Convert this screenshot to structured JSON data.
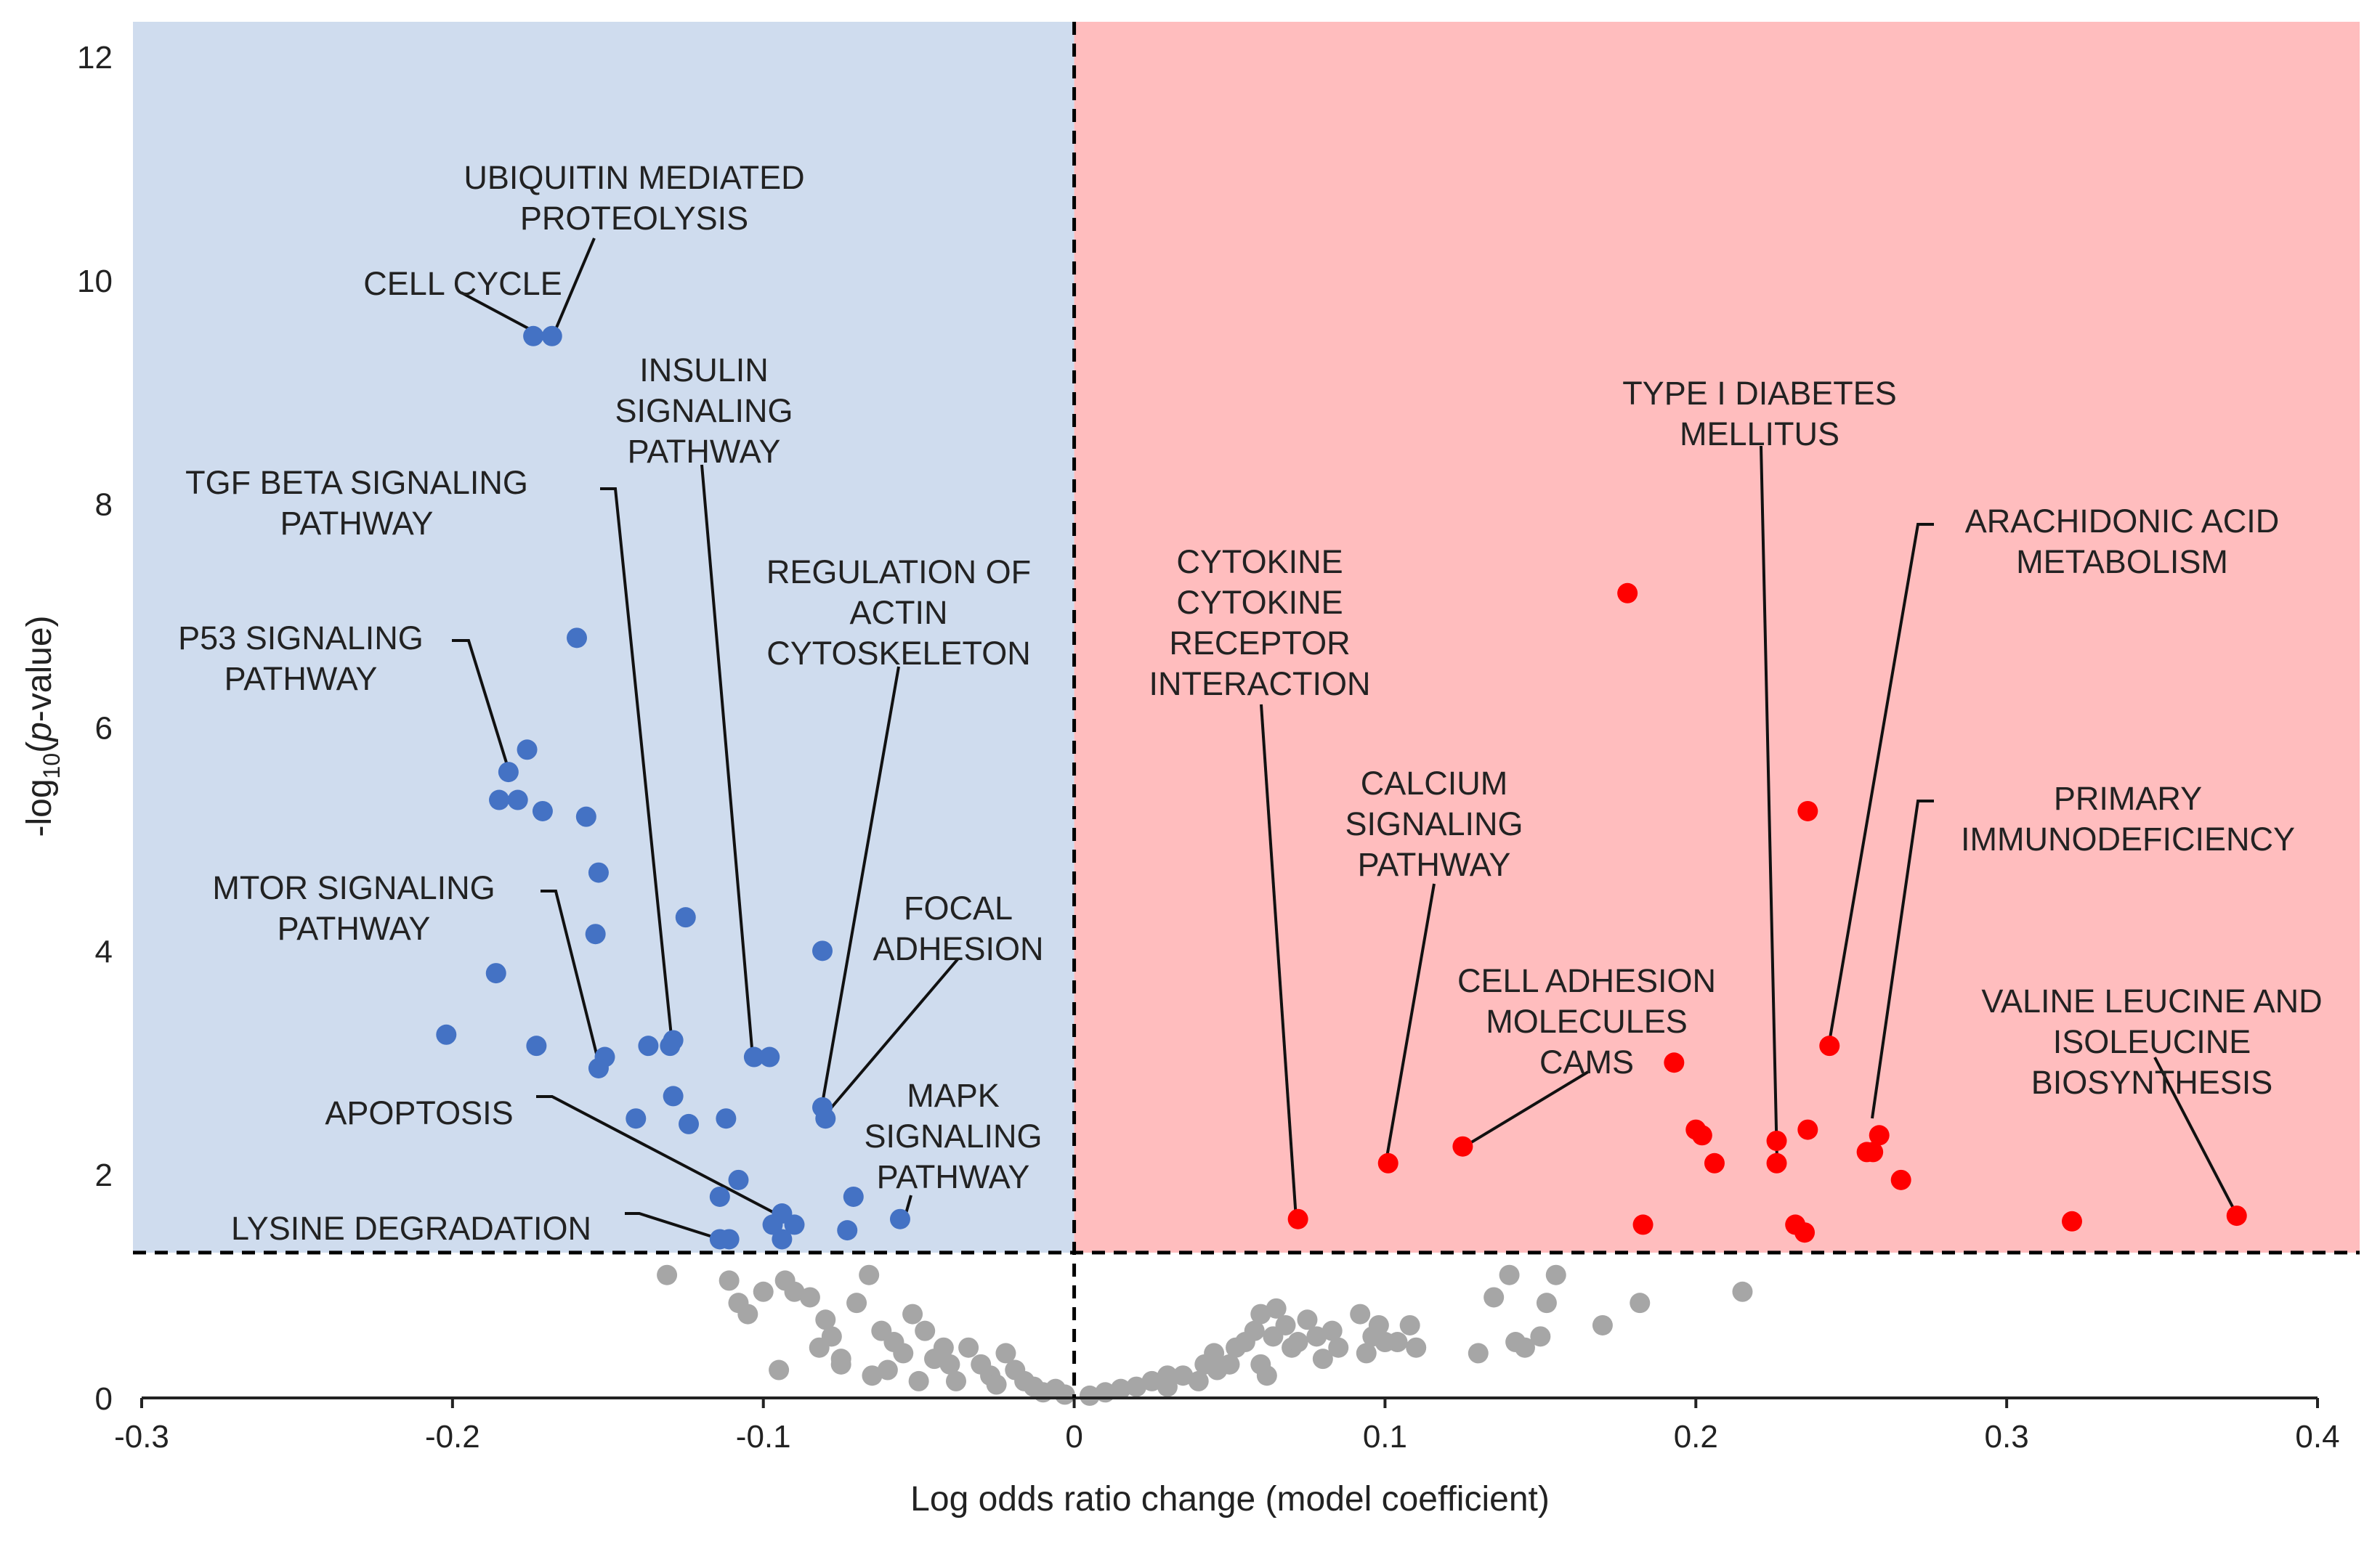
{
  "chart_data": {
    "type": "scatter",
    "title": "",
    "xlabel": "Log odds ratio change (model coefficient)",
    "ylabel": {
      "prefix": "-log",
      "sub": "10",
      "open": "(",
      "ital": "p",
      "rest": "-value)"
    },
    "xlim": [
      -0.3,
      0.4
    ],
    "ylim": [
      0,
      12
    ],
    "x_ticks": [
      "-0.3",
      "-0.2",
      "-0.1",
      "0",
      "0.1",
      "0.2",
      "0.3",
      "0.4"
    ],
    "y_ticks": [
      "0",
      "2",
      "4",
      "6",
      "8",
      "10",
      "12"
    ],
    "significance_threshold": 1.3,
    "colors": {
      "negative_region": "#cfdcee",
      "positive_region": "#ffbdbe",
      "decreased": "#4472c4",
      "increased": "#ff0000",
      "not_significant": "#a6a6a6"
    },
    "series": [
      {
        "group": "decreased",
        "points": [
          [
            -0.174,
            9.5
          ],
          [
            -0.168,
            9.5
          ],
          [
            -0.16,
            6.8
          ],
          [
            -0.176,
            5.8
          ],
          [
            -0.182,
            5.6
          ],
          [
            -0.185,
            5.35
          ],
          [
            -0.179,
            5.35
          ],
          [
            -0.171,
            5.25
          ],
          [
            -0.157,
            5.2
          ],
          [
            -0.153,
            4.7
          ],
          [
            -0.154,
            4.15
          ],
          [
            -0.125,
            4.3
          ],
          [
            -0.081,
            4.0
          ],
          [
            -0.186,
            3.8
          ],
          [
            -0.202,
            3.25
          ],
          [
            -0.173,
            3.15
          ],
          [
            -0.137,
            3.15
          ],
          [
            -0.13,
            3.15
          ],
          [
            -0.129,
            3.2
          ],
          [
            -0.103,
            3.05
          ],
          [
            -0.098,
            3.05
          ],
          [
            -0.151,
            3.05
          ],
          [
            -0.153,
            2.95
          ],
          [
            -0.129,
            2.7
          ],
          [
            -0.081,
            2.6
          ],
          [
            -0.08,
            2.5
          ],
          [
            -0.141,
            2.5
          ],
          [
            -0.124,
            2.45
          ],
          [
            -0.112,
            2.5
          ],
          [
            -0.108,
            1.95
          ],
          [
            -0.114,
            1.8
          ],
          [
            -0.071,
            1.8
          ],
          [
            -0.094,
            1.65
          ],
          [
            -0.09,
            1.55
          ],
          [
            -0.097,
            1.55
          ],
          [
            -0.073,
            1.5
          ],
          [
            -0.056,
            1.6
          ],
          [
            -0.111,
            1.42
          ],
          [
            -0.114,
            1.42
          ],
          [
            -0.094,
            1.42
          ]
        ]
      },
      {
        "group": "increased",
        "points": [
          [
            0.178,
            7.2
          ],
          [
            0.236,
            5.25
          ],
          [
            0.243,
            3.15
          ],
          [
            0.193,
            3.0
          ],
          [
            0.2,
            2.4
          ],
          [
            0.202,
            2.35
          ],
          [
            0.206,
            2.1
          ],
          [
            0.226,
            2.3
          ],
          [
            0.226,
            2.1
          ],
          [
            0.236,
            2.4
          ],
          [
            0.259,
            2.35
          ],
          [
            0.255,
            2.2
          ],
          [
            0.257,
            2.2
          ],
          [
            0.266,
            1.95
          ],
          [
            0.101,
            2.1
          ],
          [
            0.125,
            2.25
          ],
          [
            0.072,
            1.6
          ],
          [
            0.183,
            1.55
          ],
          [
            0.232,
            1.55
          ],
          [
            0.235,
            1.48
          ],
          [
            0.321,
            1.58
          ],
          [
            0.374,
            1.63
          ]
        ]
      },
      {
        "group": "not_significant",
        "points": [
          [
            -0.131,
            1.1
          ],
          [
            -0.111,
            1.05
          ],
          [
            -0.108,
            0.85
          ],
          [
            -0.105,
            0.75
          ],
          [
            -0.1,
            0.95
          ],
          [
            -0.093,
            1.05
          ],
          [
            -0.09,
            0.95
          ],
          [
            -0.085,
            0.9
          ],
          [
            -0.08,
            0.7
          ],
          [
            -0.078,
            0.55
          ],
          [
            -0.082,
            0.45
          ],
          [
            -0.075,
            0.35
          ],
          [
            -0.07,
            0.85
          ],
          [
            -0.066,
            1.1
          ],
          [
            -0.062,
            0.6
          ],
          [
            -0.058,
            0.5
          ],
          [
            -0.055,
            0.4
          ],
          [
            -0.052,
            0.75
          ],
          [
            -0.048,
            0.6
          ],
          [
            -0.045,
            0.35
          ],
          [
            -0.042,
            0.45
          ],
          [
            -0.04,
            0.3
          ],
          [
            -0.038,
            0.15
          ],
          [
            -0.034,
            0.45
          ],
          [
            -0.03,
            0.3
          ],
          [
            -0.027,
            0.2
          ],
          [
            -0.025,
            0.12
          ],
          [
            -0.022,
            0.4
          ],
          [
            -0.019,
            0.25
          ],
          [
            -0.016,
            0.15
          ],
          [
            -0.013,
            0.1
          ],
          [
            -0.01,
            0.05
          ],
          [
            -0.006,
            0.08
          ],
          [
            -0.003,
            0.03
          ],
          [
            -0.095,
            0.25
          ],
          [
            -0.075,
            0.3
          ],
          [
            -0.065,
            0.2
          ],
          [
            -0.06,
            0.25
          ],
          [
            -0.05,
            0.15
          ],
          [
            0.005,
            0.02
          ],
          [
            0.01,
            0.05
          ],
          [
            0.015,
            0.08
          ],
          [
            0.02,
            0.1
          ],
          [
            0.025,
            0.15
          ],
          [
            0.03,
            0.2
          ],
          [
            0.03,
            0.1
          ],
          [
            0.035,
            0.2
          ],
          [
            0.04,
            0.15
          ],
          [
            0.042,
            0.3
          ],
          [
            0.045,
            0.4
          ],
          [
            0.046,
            0.25
          ],
          [
            0.05,
            0.3
          ],
          [
            0.052,
            0.45
          ],
          [
            0.055,
            0.5
          ],
          [
            0.058,
            0.6
          ],
          [
            0.06,
            0.3
          ],
          [
            0.06,
            0.75
          ],
          [
            0.062,
            0.2
          ],
          [
            0.064,
            0.55
          ],
          [
            0.065,
            0.8
          ],
          [
            0.068,
            0.65
          ],
          [
            0.07,
            0.45
          ],
          [
            0.072,
            0.5
          ],
          [
            0.075,
            0.7
          ],
          [
            0.078,
            0.55
          ],
          [
            0.08,
            0.35
          ],
          [
            0.083,
            0.6
          ],
          [
            0.085,
            0.45
          ],
          [
            0.092,
            0.75
          ],
          [
            0.094,
            0.4
          ],
          [
            0.096,
            0.55
          ],
          [
            0.098,
            0.65
          ],
          [
            0.1,
            0.5
          ],
          [
            0.104,
            0.5
          ],
          [
            0.108,
            0.65
          ],
          [
            0.11,
            0.45
          ],
          [
            0.13,
            0.4
          ],
          [
            0.135,
            0.9
          ],
          [
            0.14,
            1.1
          ],
          [
            0.142,
            0.5
          ],
          [
            0.145,
            0.45
          ],
          [
            0.15,
            0.55
          ],
          [
            0.152,
            0.85
          ],
          [
            0.155,
            1.1
          ],
          [
            0.17,
            0.65
          ],
          [
            0.182,
            0.85
          ],
          [
            0.215,
            0.95
          ]
        ]
      }
    ],
    "annotations": [
      {
        "lines": [
          "UBIQUITIN MEDIATED",
          "PROTEOLYSIS"
        ],
        "target": [
          -0.168,
          9.5
        ]
      },
      {
        "lines": [
          "CELL CYCLE"
        ],
        "target": [
          -0.174,
          9.5
        ]
      },
      {
        "lines": [
          "INSULIN",
          "SIGNALING",
          "PATHWAY"
        ],
        "target": [
          -0.103,
          3.05
        ]
      },
      {
        "lines": [
          "TGF BETA SIGNALING",
          "PATHWAY"
        ],
        "target": [
          -0.13,
          3.15
        ]
      },
      {
        "lines": [
          "REGULATION OF",
          "ACTIN",
          "CYTOSKELETON"
        ],
        "target": [
          -0.081,
          2.6
        ]
      },
      {
        "lines": [
          "P53 SIGNALING",
          "PATHWAY"
        ],
        "target": [
          -0.182,
          5.6
        ]
      },
      {
        "lines": [
          "MTOR SIGNALING",
          "PATHWAY"
        ],
        "target": [
          -0.153,
          2.95
        ]
      },
      {
        "lines": [
          "FOCAL",
          "ADHESION"
        ],
        "target": [
          -0.08,
          2.5
        ]
      },
      {
        "lines": [
          "APOPTOSIS"
        ],
        "target": [
          -0.09,
          1.55
        ]
      },
      {
        "lines": [
          "MAPK",
          "SIGNALING",
          "PATHWAY"
        ],
        "target": [
          -0.056,
          1.6
        ]
      },
      {
        "lines": [
          "LYSINE DEGRADATION"
        ],
        "target": [
          -0.114,
          1.42
        ]
      },
      {
        "lines": [
          "CYTOKINE",
          "CYTOKINE",
          "RECEPTOR",
          "INTERACTION"
        ],
        "target": [
          0.072,
          1.6
        ]
      },
      {
        "lines": [
          "CALCIUM",
          "SIGNALING",
          "PATHWAY"
        ],
        "target": [
          0.101,
          2.1
        ]
      },
      {
        "lines": [
          "CELL ADHESION",
          "MOLECULES",
          "CAMS"
        ],
        "target": [
          0.125,
          2.25
        ]
      },
      {
        "lines": [
          "TYPE I DIABETES",
          "MELLITUS"
        ],
        "target": [
          0.226,
          2.1
        ]
      },
      {
        "lines": [
          "ARACHIDONIC ACID",
          "METABOLISM"
        ],
        "target": [
          0.243,
          3.15
        ]
      },
      {
        "lines": [
          "PRIMARY",
          "IMMUNODEFICIENCY"
        ],
        "target": [
          0.257,
          2.2
        ]
      },
      {
        "lines": [
          "VALINE LEUCINE AND",
          "ISOLEUCINE",
          "BIOSYNTHESIS"
        ],
        "target": [
          0.374,
          1.63
        ]
      }
    ]
  }
}
